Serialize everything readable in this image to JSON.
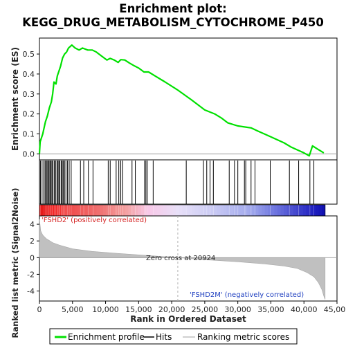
{
  "chart_data": {
    "type": "line",
    "title_line1": "Enrichment plot:",
    "title_line2": "KEGG_DRUG_METABOLISM_CYTOCHROME_P450",
    "xlabel": "Rank in Ordered Dataset",
    "ylabel_top": "Enrichment score (ES)",
    "ylabel_bottom": "Ranked list metric (Signal2Noise)",
    "xlim": [
      0,
      45000
    ],
    "x_ticks": [
      0,
      5000,
      10000,
      15000,
      20000,
      25000,
      30000,
      35000,
      40000,
      45000
    ],
    "x_tick_labels": [
      "0",
      "5,000",
      "10,000",
      "15,000",
      "20,000",
      "25,000",
      "30,000",
      "35,000",
      "40,000",
      "45,000"
    ],
    "es_ylim": [
      -0.03,
      0.58
    ],
    "es_ticks": [
      0.0,
      0.1,
      0.2,
      0.3,
      0.4,
      0.5
    ],
    "es_tick_labels": [
      "0.0",
      "0.1",
      "0.2",
      "0.3",
      "0.4",
      "0.5"
    ],
    "metric_ylim": [
      -5.2,
      5.0
    ],
    "metric_ticks": [
      -4,
      -2,
      0,
      2,
      4
    ],
    "metric_tick_labels": [
      "-4",
      "-2",
      "0",
      "2",
      "4"
    ],
    "n_genes": 43200,
    "zero_cross": 20924,
    "annotations": {
      "positive": "'FSHD2' (positively correlated)",
      "zero_cross": "Zero cross at 20924",
      "negative": "'FSHD2M' (negatively correlated)"
    },
    "series": [
      {
        "name": "Enrichment profile",
        "color": "#00e000",
        "points": [
          [
            0,
            0.0
          ],
          [
            100,
            0.06
          ],
          [
            500,
            0.1
          ],
          [
            900,
            0.16
          ],
          [
            1200,
            0.19
          ],
          [
            1500,
            0.23
          ],
          [
            1800,
            0.26
          ],
          [
            2000,
            0.3
          ],
          [
            2200,
            0.36
          ],
          [
            2500,
            0.35
          ],
          [
            2700,
            0.39
          ],
          [
            3000,
            0.42
          ],
          [
            3200,
            0.44
          ],
          [
            3500,
            0.48
          ],
          [
            3800,
            0.5
          ],
          [
            4100,
            0.51
          ],
          [
            4400,
            0.53
          ],
          [
            4900,
            0.545
          ],
          [
            5400,
            0.53
          ],
          [
            6000,
            0.52
          ],
          [
            6500,
            0.53
          ],
          [
            7300,
            0.52
          ],
          [
            8000,
            0.52
          ],
          [
            8600,
            0.51
          ],
          [
            9400,
            0.49
          ],
          [
            10200,
            0.47
          ],
          [
            10700,
            0.478
          ],
          [
            11300,
            0.47
          ],
          [
            11900,
            0.458
          ],
          [
            12300,
            0.472
          ],
          [
            12900,
            0.47
          ],
          [
            13600,
            0.455
          ],
          [
            14400,
            0.44
          ],
          [
            15000,
            0.43
          ],
          [
            15800,
            0.41
          ],
          [
            16500,
            0.41
          ],
          [
            17500,
            0.39
          ],
          [
            19000,
            0.36
          ],
          [
            20900,
            0.32
          ],
          [
            23000,
            0.27
          ],
          [
            25000,
            0.22
          ],
          [
            26500,
            0.2
          ],
          [
            27500,
            0.18
          ],
          [
            28500,
            0.155
          ],
          [
            29000,
            0.15
          ],
          [
            30000,
            0.14
          ],
          [
            31000,
            0.135
          ],
          [
            32000,
            0.13
          ],
          [
            33000,
            0.115
          ],
          [
            34000,
            0.1
          ],
          [
            35000,
            0.085
          ],
          [
            36000,
            0.07
          ],
          [
            37000,
            0.055
          ],
          [
            38000,
            0.035
          ],
          [
            39000,
            0.02
          ],
          [
            40000,
            0.005
          ],
          [
            40800,
            -0.01
          ],
          [
            41300,
            0.04
          ],
          [
            42000,
            0.025
          ],
          [
            43000,
            0.005
          ]
        ]
      },
      {
        "name": "Hits",
        "color": "#000000",
        "positions": [
          150,
          400,
          650,
          850,
          1000,
          1150,
          1300,
          1450,
          1600,
          1750,
          1900,
          2050,
          2250,
          2450,
          2650,
          2800,
          2950,
          3100,
          3300,
          3450,
          3600,
          3800,
          4000,
          4250,
          4500,
          4800,
          6200,
          6700,
          7400,
          8100,
          10400,
          10700,
          11600,
          12000,
          12300,
          12600,
          14000,
          14500,
          15900,
          16100,
          16300,
          17200,
          22200,
          24800,
          25300,
          25800,
          26300,
          28700,
          29500,
          30000,
          31000,
          31200,
          32000,
          32600,
          34900,
          37800,
          39200,
          40900,
          41500
        ]
      },
      {
        "name": "Ranking metric scores",
        "color": "#c0c0c0",
        "metric_profile": [
          [
            0,
            4.6
          ],
          [
            200,
            3.2
          ],
          [
            500,
            2.7
          ],
          [
            1000,
            2.3
          ],
          [
            2000,
            1.8
          ],
          [
            3000,
            1.5
          ],
          [
            5000,
            1.05
          ],
          [
            8000,
            0.75
          ],
          [
            12000,
            0.5
          ],
          [
            16000,
            0.28
          ],
          [
            20924,
            0.0
          ],
          [
            25000,
            -0.25
          ],
          [
            30000,
            -0.5
          ],
          [
            34000,
            -0.75
          ],
          [
            37000,
            -1.0
          ],
          [
            39000,
            -1.3
          ],
          [
            40500,
            -1.8
          ],
          [
            41500,
            -2.3
          ],
          [
            42200,
            -3.0
          ],
          [
            42700,
            -3.8
          ],
          [
            43000,
            -4.6
          ],
          [
            43200,
            -5.0
          ]
        ]
      }
    ],
    "heatmap_colors": [
      [
        0,
        "#e00000"
      ],
      [
        2000,
        "#f01818"
      ],
      [
        5000,
        "#f05050"
      ],
      [
        9000,
        "#f07070"
      ],
      [
        13000,
        "#f4a0a0"
      ],
      [
        16500,
        "#f8c8e8"
      ],
      [
        20924,
        "#e8e0f8"
      ],
      [
        26000,
        "#ccccf4"
      ],
      [
        32000,
        "#a0a8ec"
      ],
      [
        35500,
        "#7078e0"
      ],
      [
        41500,
        "#2020c0"
      ],
      [
        43200,
        "#1010b0"
      ]
    ]
  },
  "legend": {
    "items": [
      "Enrichment profile",
      "Hits",
      "Ranking metric scores"
    ]
  }
}
